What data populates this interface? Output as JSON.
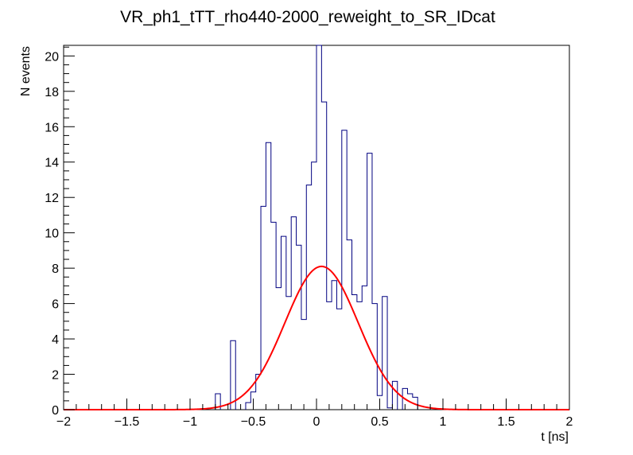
{
  "chart_data": {
    "type": "histogram",
    "title": "VR_ph1_tTT_rho440-2000_reweight_to_SR_IDcat",
    "xlabel": "t [ns]",
    "ylabel": "N events",
    "xlim": [
      -2,
      2
    ],
    "ylim": [
      0,
      20.6
    ],
    "x_ticks": [
      -2,
      -1.5,
      -1,
      -0.5,
      0,
      0.5,
      1,
      1.5,
      2
    ],
    "x_tick_labels": [
      "−2",
      "−1.5",
      "−1",
      "−0.5",
      "0",
      "0.5",
      "1",
      "1.5",
      "2"
    ],
    "y_ticks": [
      0,
      2,
      4,
      6,
      8,
      10,
      12,
      14,
      16,
      18,
      20
    ],
    "y_tick_labels": [
      "0",
      "2",
      "4",
      "6",
      "8",
      "10",
      "12",
      "14",
      "16",
      "18",
      "20"
    ],
    "histogram": {
      "name": "data",
      "color": "#000080",
      "bins": [
        {
          "x0": -0.8,
          "x1": -0.76,
          "value": 0.9
        },
        {
          "x0": -0.68,
          "x1": -0.64,
          "value": 3.9
        },
        {
          "x0": -0.56,
          "x1": -0.52,
          "value": 0.4
        },
        {
          "x0": -0.52,
          "x1": -0.48,
          "value": 1.0
        },
        {
          "x0": -0.48,
          "x1": -0.44,
          "value": 2.0
        },
        {
          "x0": -0.44,
          "x1": -0.4,
          "value": 11.5
        },
        {
          "x0": -0.4,
          "x1": -0.36,
          "value": 15.1
        },
        {
          "x0": -0.36,
          "x1": -0.32,
          "value": 10.6
        },
        {
          "x0": -0.32,
          "x1": -0.28,
          "value": 6.9
        },
        {
          "x0": -0.28,
          "x1": -0.24,
          "value": 9.8
        },
        {
          "x0": -0.24,
          "x1": -0.2,
          "value": 6.4
        },
        {
          "x0": -0.2,
          "x1": -0.16,
          "value": 10.9
        },
        {
          "x0": -0.16,
          "x1": -0.12,
          "value": 9.3
        },
        {
          "x0": -0.12,
          "x1": -0.08,
          "value": 5.1
        },
        {
          "x0": -0.08,
          "x1": -0.04,
          "value": 12.7
        },
        {
          "x0": -0.04,
          "x1": 0.0,
          "value": 14.0
        },
        {
          "x0": 0.0,
          "x1": 0.04,
          "value": 20.6
        },
        {
          "x0": 0.04,
          "x1": 0.08,
          "value": 17.4
        },
        {
          "x0": 0.08,
          "x1": 0.12,
          "value": 6.1
        },
        {
          "x0": 0.12,
          "x1": 0.16,
          "value": 7.3
        },
        {
          "x0": 0.16,
          "x1": 0.2,
          "value": 5.7
        },
        {
          "x0": 0.2,
          "x1": 0.24,
          "value": 15.8
        },
        {
          "x0": 0.24,
          "x1": 0.28,
          "value": 9.6
        },
        {
          "x0": 0.28,
          "x1": 0.32,
          "value": 6.5
        },
        {
          "x0": 0.32,
          "x1": 0.36,
          "value": 6.1
        },
        {
          "x0": 0.36,
          "x1": 0.4,
          "value": 7.0
        },
        {
          "x0": 0.4,
          "x1": 0.44,
          "value": 14.5
        },
        {
          "x0": 0.44,
          "x1": 0.48,
          "value": 6.0
        },
        {
          "x0": 0.48,
          "x1": 0.52,
          "value": 0.8
        },
        {
          "x0": 0.52,
          "x1": 0.56,
          "value": 6.4
        },
        {
          "x0": 0.56,
          "x1": 0.6,
          "value": 0.1
        },
        {
          "x0": 0.6,
          "x1": 0.64,
          "value": 1.6
        },
        {
          "x0": 0.68,
          "x1": 0.72,
          "value": 1.2
        },
        {
          "x0": 0.72,
          "x1": 0.76,
          "value": 0.9
        },
        {
          "x0": 0.76,
          "x1": 0.8,
          "value": 0.7
        }
      ]
    },
    "fit": {
      "name": "gaussian-fit",
      "type": "gaussian",
      "color": "#ff0000",
      "amplitude": 8.1,
      "mean": 0.04,
      "sigma": 0.29
    }
  }
}
